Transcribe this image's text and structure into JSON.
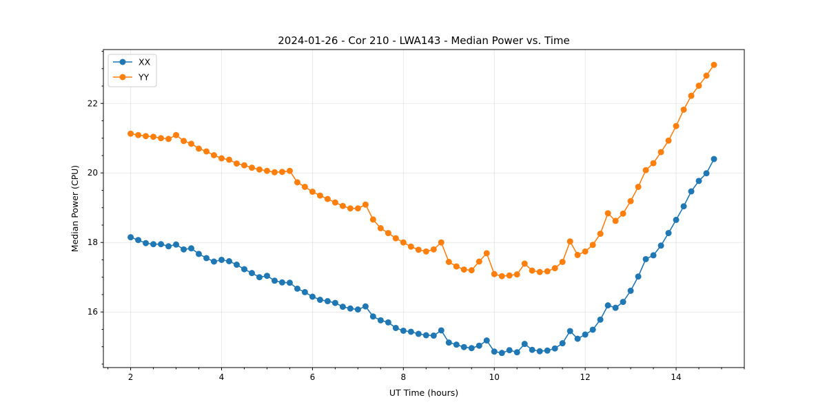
{
  "chart_data": {
    "type": "line",
    "title": "2024-01-26 - Cor 210 - LWA143 - Median Power vs. Time",
    "xlabel": "UT Time (hours)",
    "ylabel": "Median Power (CPU)",
    "xlim": [
      1.4,
      15.5
    ],
    "ylim": [
      14.4,
      23.55
    ],
    "xticks": [
      2,
      4,
      6,
      8,
      10,
      12,
      14
    ],
    "yticks": [
      16,
      18,
      20,
      22
    ],
    "xtick_labels": [
      "2",
      "4",
      "6",
      "8",
      "10",
      "12",
      "14"
    ],
    "ytick_labels": [
      "16",
      "18",
      "20",
      "22"
    ],
    "grid": true,
    "legend_position": "top-left",
    "x": [
      2.0,
      2.167,
      2.333,
      2.5,
      2.667,
      2.833,
      3.0,
      3.167,
      3.333,
      3.5,
      3.667,
      3.833,
      4.0,
      4.167,
      4.333,
      4.5,
      4.667,
      4.833,
      5.0,
      5.167,
      5.333,
      5.5,
      5.667,
      5.833,
      6.0,
      6.167,
      6.333,
      6.5,
      6.667,
      6.833,
      7.0,
      7.167,
      7.333,
      7.5,
      7.667,
      7.833,
      8.0,
      8.167,
      8.333,
      8.5,
      8.667,
      8.833,
      9.0,
      9.167,
      9.333,
      9.5,
      9.667,
      9.833,
      10.0,
      10.167,
      10.333,
      10.5,
      10.667,
      10.833,
      11.0,
      11.167,
      11.333,
      11.5,
      11.667,
      11.833,
      12.0,
      12.167,
      12.333,
      12.5,
      12.667,
      12.833,
      13.0,
      13.167,
      13.333,
      13.5,
      13.667,
      13.833,
      14.0,
      14.167,
      14.333,
      14.5,
      14.667,
      14.833
    ],
    "series": [
      {
        "name": "XX",
        "color": "#1f77b4",
        "values": [
          18.15,
          18.07,
          17.98,
          17.95,
          17.95,
          17.89,
          17.94,
          17.8,
          17.83,
          17.67,
          17.55,
          17.45,
          17.5,
          17.46,
          17.36,
          17.23,
          17.12,
          17.0,
          17.04,
          16.9,
          16.85,
          16.84,
          16.67,
          16.57,
          16.44,
          16.35,
          16.31,
          16.26,
          16.15,
          16.1,
          16.07,
          16.16,
          15.87,
          15.76,
          15.7,
          15.54,
          15.46,
          15.43,
          15.37,
          15.33,
          15.32,
          15.47,
          15.12,
          15.06,
          14.99,
          14.96,
          15.03,
          15.18,
          14.86,
          14.82,
          14.9,
          14.84,
          15.08,
          14.91,
          14.87,
          14.89,
          14.95,
          15.1,
          15.45,
          15.23,
          15.35,
          15.49,
          15.78,
          16.19,
          16.12,
          16.29,
          16.61,
          17.02,
          17.52,
          17.63,
          17.91,
          18.27,
          18.65,
          19.04,
          19.47,
          19.77,
          19.99,
          20.4
        ]
      },
      {
        "name": "YY",
        "color": "#ff7f0e",
        "values": [
          21.13,
          21.09,
          21.06,
          21.04,
          21.0,
          20.98,
          21.09,
          20.92,
          20.84,
          20.7,
          20.62,
          20.51,
          20.42,
          20.38,
          20.27,
          20.22,
          20.15,
          20.1,
          20.06,
          20.02,
          20.03,
          20.06,
          19.73,
          19.6,
          19.46,
          19.35,
          19.25,
          19.15,
          19.05,
          18.98,
          18.98,
          19.09,
          18.66,
          18.41,
          18.27,
          18.12,
          18.0,
          17.88,
          17.79,
          17.74,
          17.8,
          18.0,
          17.44,
          17.31,
          17.22,
          17.2,
          17.45,
          17.69,
          17.09,
          17.03,
          17.05,
          17.08,
          17.39,
          17.19,
          17.15,
          17.17,
          17.26,
          17.44,
          18.03,
          17.64,
          17.74,
          17.93,
          18.25,
          18.84,
          18.62,
          18.83,
          19.19,
          19.6,
          20.08,
          20.28,
          20.6,
          20.93,
          21.35,
          21.82,
          22.22,
          22.51,
          22.8,
          23.11
        ]
      }
    ]
  }
}
